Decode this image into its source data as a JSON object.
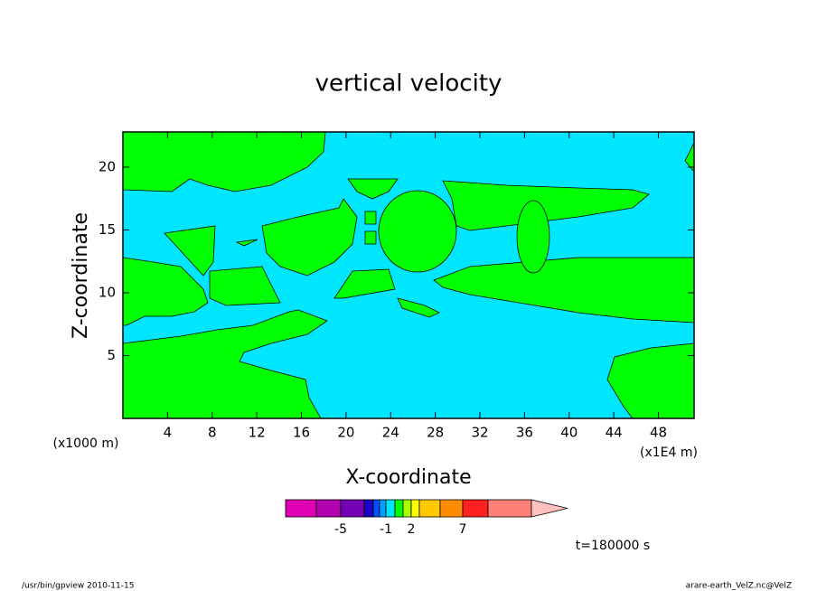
{
  "chart_data": {
    "type": "contour",
    "title": "vertical velocity",
    "xlabel": "X-coordinate",
    "ylabel": "Z-coordinate",
    "xunit": "(x1E4 m)",
    "yunit": "(x1000 m)",
    "xlim": [
      0,
      51.2
    ],
    "xticks": [
      4,
      8,
      12,
      16,
      20,
      24,
      28,
      32,
      36,
      40,
      44,
      48
    ],
    "ylim": [
      0,
      22.8
    ],
    "yticks": [
      5,
      10,
      15,
      20
    ],
    "colorbar": {
      "colors": [
        "#e000b4",
        "#b000b0",
        "#7400b4",
        "#1c00c8",
        "#0050ff",
        "#00a0ff",
        "#00e6ff",
        "#00ff00",
        "#a8ff00",
        "#ffff00",
        "#ffc800",
        "#ff8c00",
        "#ff2020",
        "#ff8078",
        "#ffc0c0"
      ],
      "ticks": [
        -5,
        -1,
        2,
        7
      ]
    },
    "time_label": "t=180000 s",
    "footer_left": "/usr/bin/gpview  2010-11-15",
    "footer_right": "arare-earth_VelZ.nc@VelZ"
  }
}
